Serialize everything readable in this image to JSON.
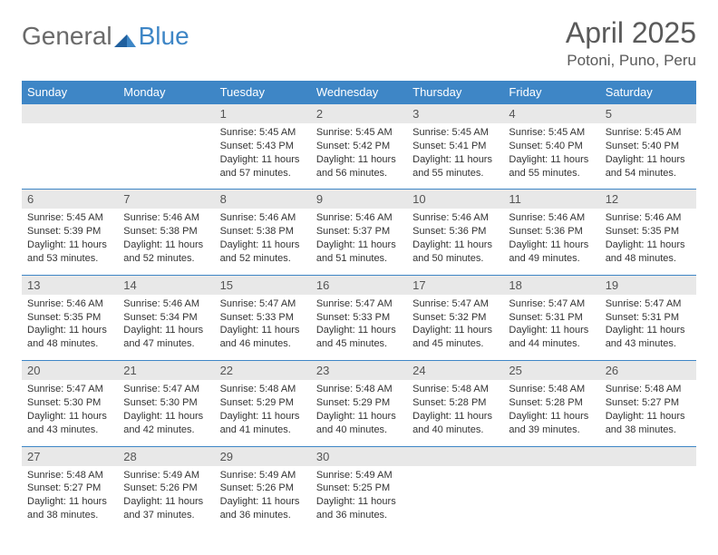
{
  "brand": {
    "part1": "General",
    "part2": "Blue"
  },
  "title": {
    "month": "April 2025",
    "location": "Potoni, Puno, Peru"
  },
  "colors": {
    "header_bg": "#3e86c6",
    "header_text": "#ffffff",
    "daynum_bg": "#e8e8e8",
    "text": "#333333",
    "row_border": "#3e86c6",
    "logo_gray": "#6a6a6a",
    "logo_blue": "#3e86c6"
  },
  "typography": {
    "title_fontsize": 32,
    "location_fontsize": 17,
    "weekday_fontsize": 13,
    "cell_fontsize": 11
  },
  "weekdays": [
    "Sunday",
    "Monday",
    "Tuesday",
    "Wednesday",
    "Thursday",
    "Friday",
    "Saturday"
  ],
  "weeks": [
    [
      null,
      null,
      {
        "n": "1",
        "sr": "5:45 AM",
        "ss": "5:43 PM",
        "dl": "11 hours and 57 minutes."
      },
      {
        "n": "2",
        "sr": "5:45 AM",
        "ss": "5:42 PM",
        "dl": "11 hours and 56 minutes."
      },
      {
        "n": "3",
        "sr": "5:45 AM",
        "ss": "5:41 PM",
        "dl": "11 hours and 55 minutes."
      },
      {
        "n": "4",
        "sr": "5:45 AM",
        "ss": "5:40 PM",
        "dl": "11 hours and 55 minutes."
      },
      {
        "n": "5",
        "sr": "5:45 AM",
        "ss": "5:40 PM",
        "dl": "11 hours and 54 minutes."
      }
    ],
    [
      {
        "n": "6",
        "sr": "5:45 AM",
        "ss": "5:39 PM",
        "dl": "11 hours and 53 minutes."
      },
      {
        "n": "7",
        "sr": "5:46 AM",
        "ss": "5:38 PM",
        "dl": "11 hours and 52 minutes."
      },
      {
        "n": "8",
        "sr": "5:46 AM",
        "ss": "5:38 PM",
        "dl": "11 hours and 52 minutes."
      },
      {
        "n": "9",
        "sr": "5:46 AM",
        "ss": "5:37 PM",
        "dl": "11 hours and 51 minutes."
      },
      {
        "n": "10",
        "sr": "5:46 AM",
        "ss": "5:36 PM",
        "dl": "11 hours and 50 minutes."
      },
      {
        "n": "11",
        "sr": "5:46 AM",
        "ss": "5:36 PM",
        "dl": "11 hours and 49 minutes."
      },
      {
        "n": "12",
        "sr": "5:46 AM",
        "ss": "5:35 PM",
        "dl": "11 hours and 48 minutes."
      }
    ],
    [
      {
        "n": "13",
        "sr": "5:46 AM",
        "ss": "5:35 PM",
        "dl": "11 hours and 48 minutes."
      },
      {
        "n": "14",
        "sr": "5:46 AM",
        "ss": "5:34 PM",
        "dl": "11 hours and 47 minutes."
      },
      {
        "n": "15",
        "sr": "5:47 AM",
        "ss": "5:33 PM",
        "dl": "11 hours and 46 minutes."
      },
      {
        "n": "16",
        "sr": "5:47 AM",
        "ss": "5:33 PM",
        "dl": "11 hours and 45 minutes."
      },
      {
        "n": "17",
        "sr": "5:47 AM",
        "ss": "5:32 PM",
        "dl": "11 hours and 45 minutes."
      },
      {
        "n": "18",
        "sr": "5:47 AM",
        "ss": "5:31 PM",
        "dl": "11 hours and 44 minutes."
      },
      {
        "n": "19",
        "sr": "5:47 AM",
        "ss": "5:31 PM",
        "dl": "11 hours and 43 minutes."
      }
    ],
    [
      {
        "n": "20",
        "sr": "5:47 AM",
        "ss": "5:30 PM",
        "dl": "11 hours and 43 minutes."
      },
      {
        "n": "21",
        "sr": "5:47 AM",
        "ss": "5:30 PM",
        "dl": "11 hours and 42 minutes."
      },
      {
        "n": "22",
        "sr": "5:48 AM",
        "ss": "5:29 PM",
        "dl": "11 hours and 41 minutes."
      },
      {
        "n": "23",
        "sr": "5:48 AM",
        "ss": "5:29 PM",
        "dl": "11 hours and 40 minutes."
      },
      {
        "n": "24",
        "sr": "5:48 AM",
        "ss": "5:28 PM",
        "dl": "11 hours and 40 minutes."
      },
      {
        "n": "25",
        "sr": "5:48 AM",
        "ss": "5:28 PM",
        "dl": "11 hours and 39 minutes."
      },
      {
        "n": "26",
        "sr": "5:48 AM",
        "ss": "5:27 PM",
        "dl": "11 hours and 38 minutes."
      }
    ],
    [
      {
        "n": "27",
        "sr": "5:48 AM",
        "ss": "5:27 PM",
        "dl": "11 hours and 38 minutes."
      },
      {
        "n": "28",
        "sr": "5:49 AM",
        "ss": "5:26 PM",
        "dl": "11 hours and 37 minutes."
      },
      {
        "n": "29",
        "sr": "5:49 AM",
        "ss": "5:26 PM",
        "dl": "11 hours and 36 minutes."
      },
      {
        "n": "30",
        "sr": "5:49 AM",
        "ss": "5:25 PM",
        "dl": "11 hours and 36 minutes."
      },
      null,
      null,
      null
    ]
  ],
  "labels": {
    "sunrise": "Sunrise:",
    "sunset": "Sunset:",
    "daylight": "Daylight:"
  }
}
